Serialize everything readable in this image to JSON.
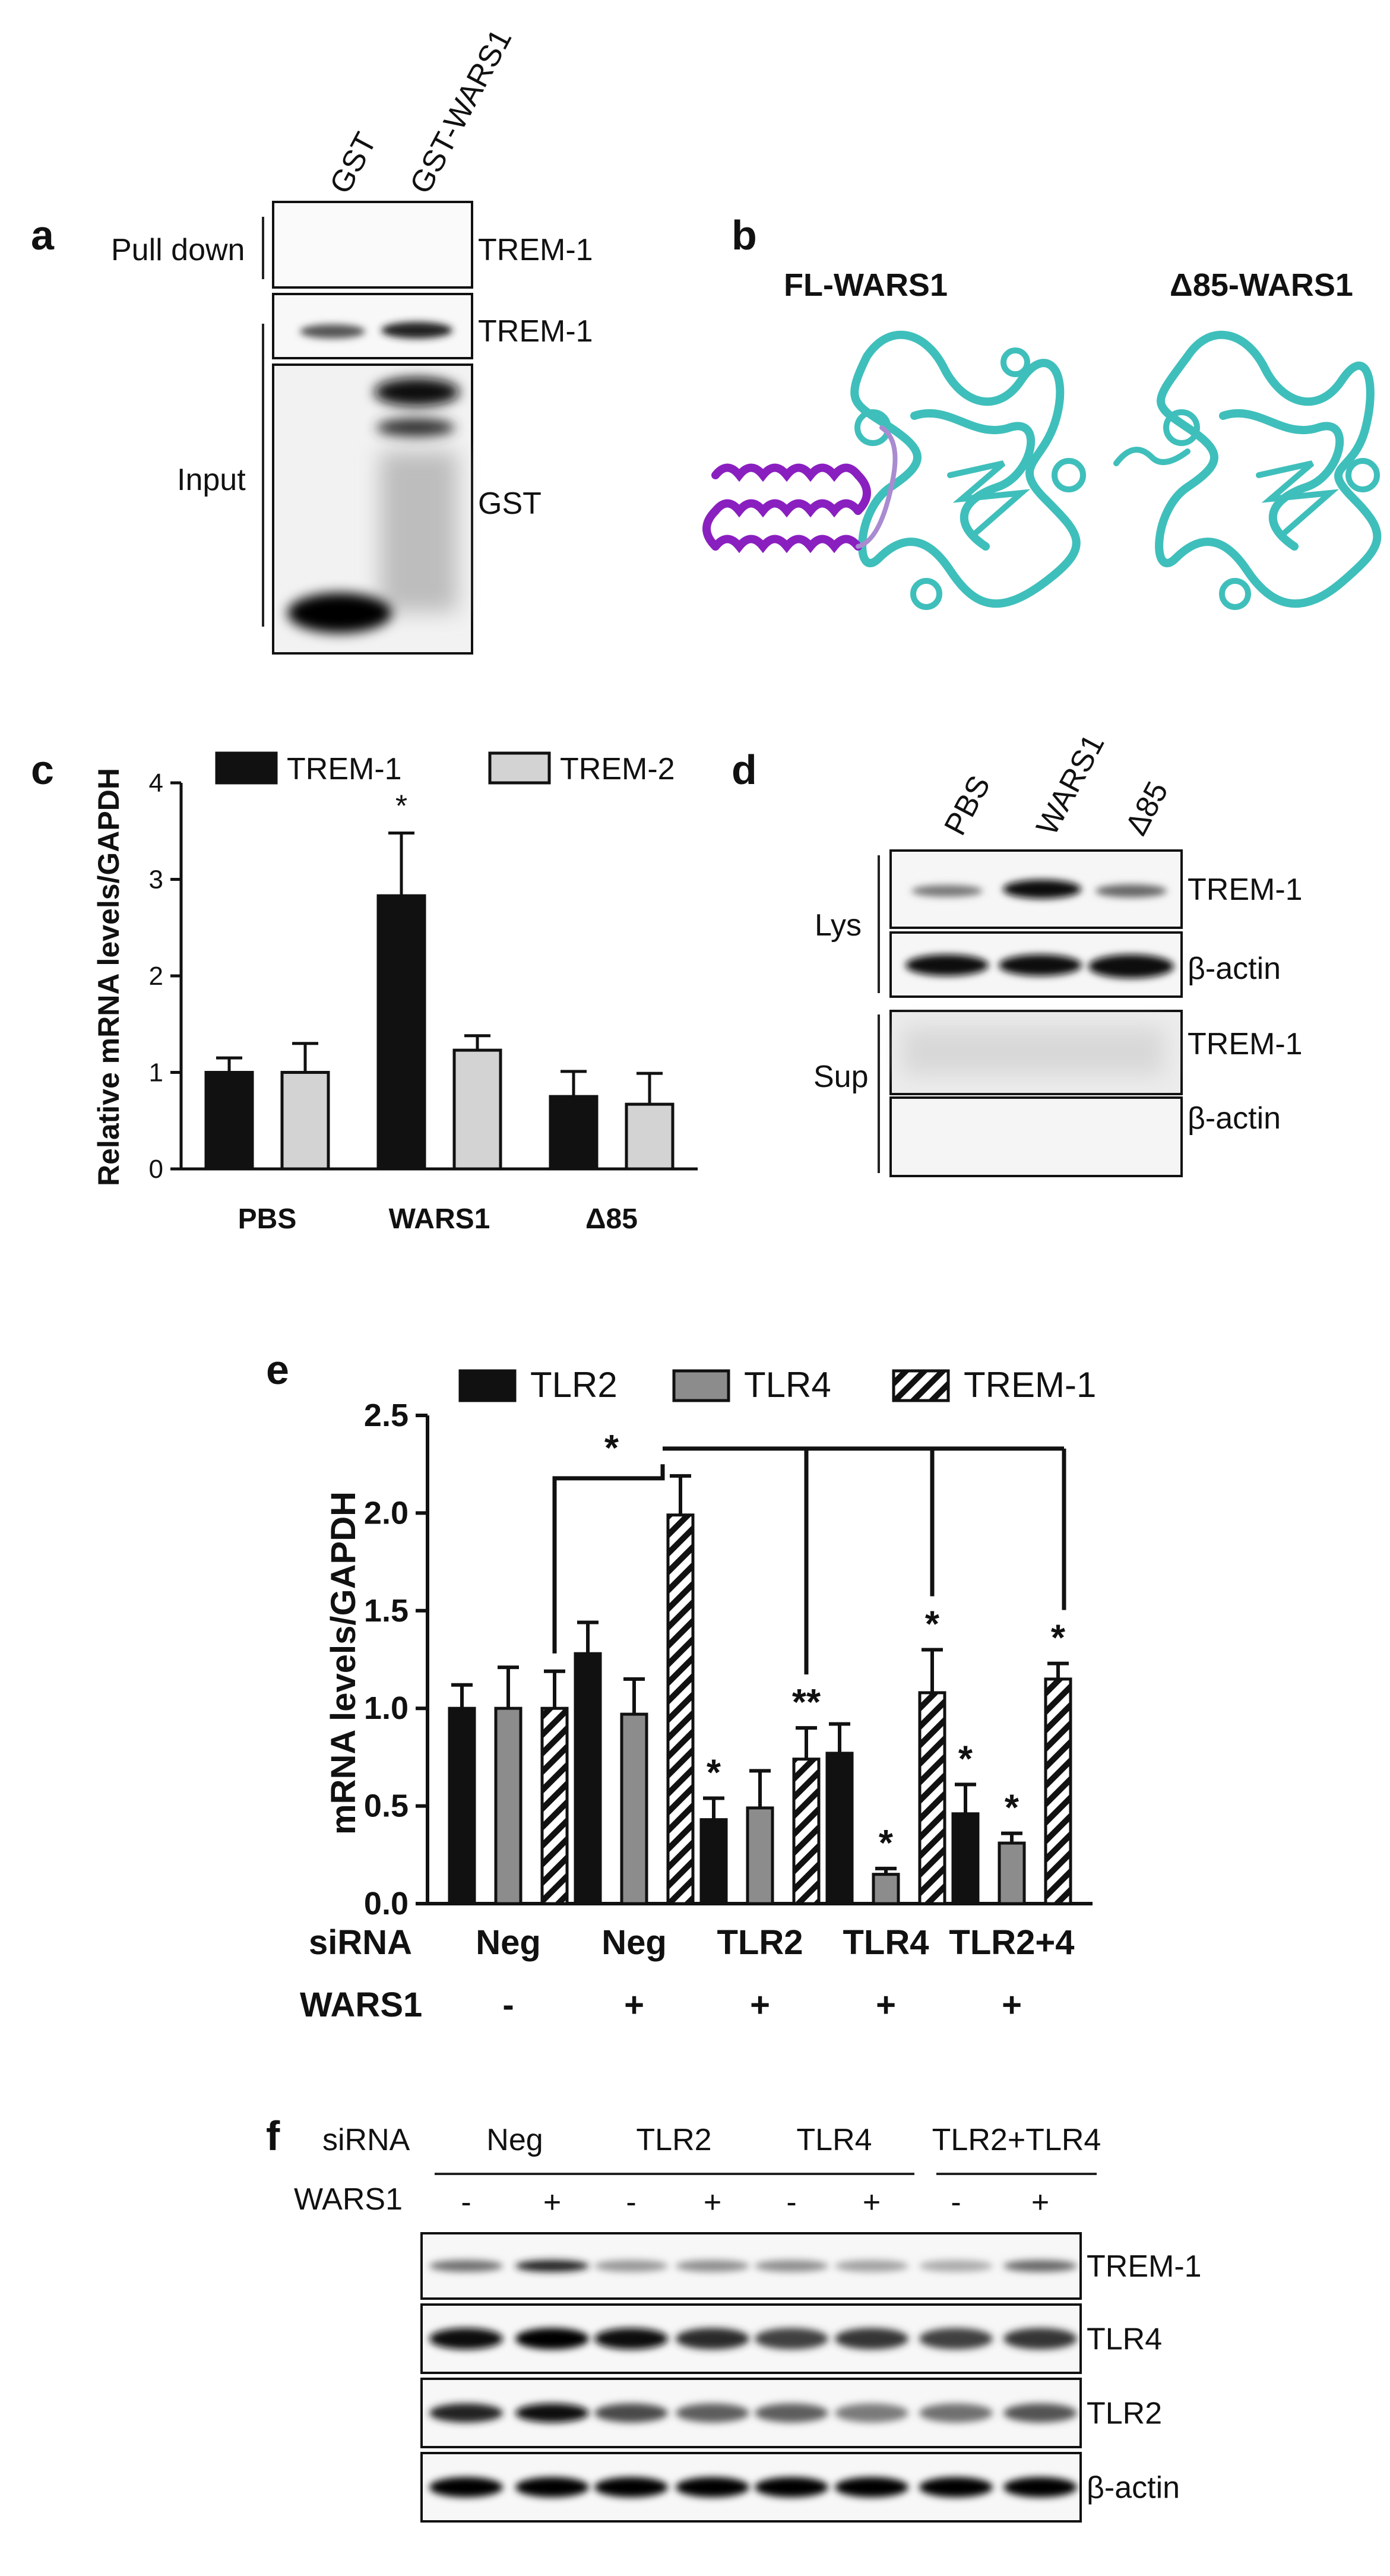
{
  "panel_a": {
    "label": "a",
    "lanes": [
      "GST",
      "GST-WARS1"
    ],
    "pull_down_label": "Pull down",
    "input_label": "Input",
    "blot_labels": [
      "TREM-1",
      "TREM-1",
      "GST"
    ]
  },
  "panel_b": {
    "label": "b",
    "structure_left_title": "FL-WARS1",
    "structure_right_title": "Δ85-WARS1"
  },
  "panel_d": {
    "label": "d",
    "lanes": [
      "PBS",
      "WARS1",
      "Δ85"
    ],
    "lys_label": "Lys",
    "sup_label": "Sup",
    "blot_labels": [
      "TREM-1",
      "β-actin",
      "TREM-1",
      "β-actin"
    ]
  },
  "panel_f": {
    "label": "f",
    "sirna_label": "siRNA",
    "wars1_label": "WARS1",
    "groups": [
      "Neg",
      "TLR2",
      "TLR4",
      "TLR2+TLR4"
    ],
    "signs": [
      "-",
      "+",
      "-",
      "+",
      "-",
      "+",
      "-",
      "+"
    ],
    "blot_labels": [
      "TREM-1",
      "TLR4",
      "TLR2",
      "β-actin"
    ]
  },
  "chart_data": [
    {
      "panel": "c",
      "label": "c",
      "type": "bar",
      "ylabel": "Relative mRNA levels/GAPDH",
      "categories": [
        "PBS",
        "WARS1",
        "Δ85"
      ],
      "ylim": [
        0,
        4
      ],
      "yticks": [
        0,
        1,
        2,
        3,
        4
      ],
      "legend_position": "top",
      "series": [
        {
          "name": "TREM-1",
          "color": "#111111",
          "values": [
            1.0,
            2.83,
            0.75
          ],
          "errors": [
            0.15,
            0.65,
            0.26
          ]
        },
        {
          "name": "TREM-2",
          "color": "#d3d3d3",
          "values": [
            1.0,
            1.23,
            0.67
          ],
          "errors": [
            0.3,
            0.15,
            0.32
          ]
        }
      ],
      "annotations": [
        {
          "category": "WARS1",
          "series": "TREM-1",
          "text": "*"
        }
      ]
    },
    {
      "panel": "e",
      "label": "e",
      "type": "bar",
      "ylabel": "mRNA levels/GAPDH",
      "categories": [
        "Neg",
        "Neg",
        "TLR2",
        "TLR4",
        "TLR2+4"
      ],
      "row_labels": {
        "siRNA": "siRNA",
        "WARS1": "WARS1"
      },
      "wars1_row": [
        "-",
        "+",
        "+",
        "+",
        "+"
      ],
      "ylim": [
        0,
        2.5
      ],
      "yticks": [
        "0.0",
        "0.5",
        "1.0",
        "1.5",
        "2.0",
        "2.5"
      ],
      "legend_position": "top",
      "series": [
        {
          "name": "TLR2",
          "fill": "black",
          "values": [
            1.0,
            1.28,
            0.43,
            0.77,
            0.46
          ],
          "errors": [
            0.12,
            0.16,
            0.11,
            0.15,
            0.15
          ]
        },
        {
          "name": "TLR4",
          "fill": "gray",
          "values": [
            1.0,
            0.97,
            0.49,
            0.15,
            0.31
          ],
          "errors": [
            0.21,
            0.18,
            0.19,
            0.03,
            0.05
          ]
        },
        {
          "name": "TREM-1",
          "fill": "hatched",
          "values": [
            1.0,
            1.99,
            0.74,
            1.08,
            1.15
          ],
          "errors": [
            0.19,
            0.2,
            0.16,
            0.22,
            0.08
          ]
        }
      ],
      "bar_annotations": [
        {
          "category": 2,
          "series": "TLR2",
          "text": "*"
        },
        {
          "category": 2,
          "series": "TREM-1",
          "text": "**"
        },
        {
          "category": 3,
          "series": "TLR4",
          "text": "*"
        },
        {
          "category": 3,
          "series": "TREM-1",
          "text": "*"
        },
        {
          "category": 4,
          "series": "TLR2",
          "text": "*"
        },
        {
          "category": 4,
          "series": "TLR4",
          "text": "*"
        },
        {
          "category": 4,
          "series": "TREM-1",
          "text": "*"
        }
      ],
      "bracket_annotation": "*"
    }
  ]
}
